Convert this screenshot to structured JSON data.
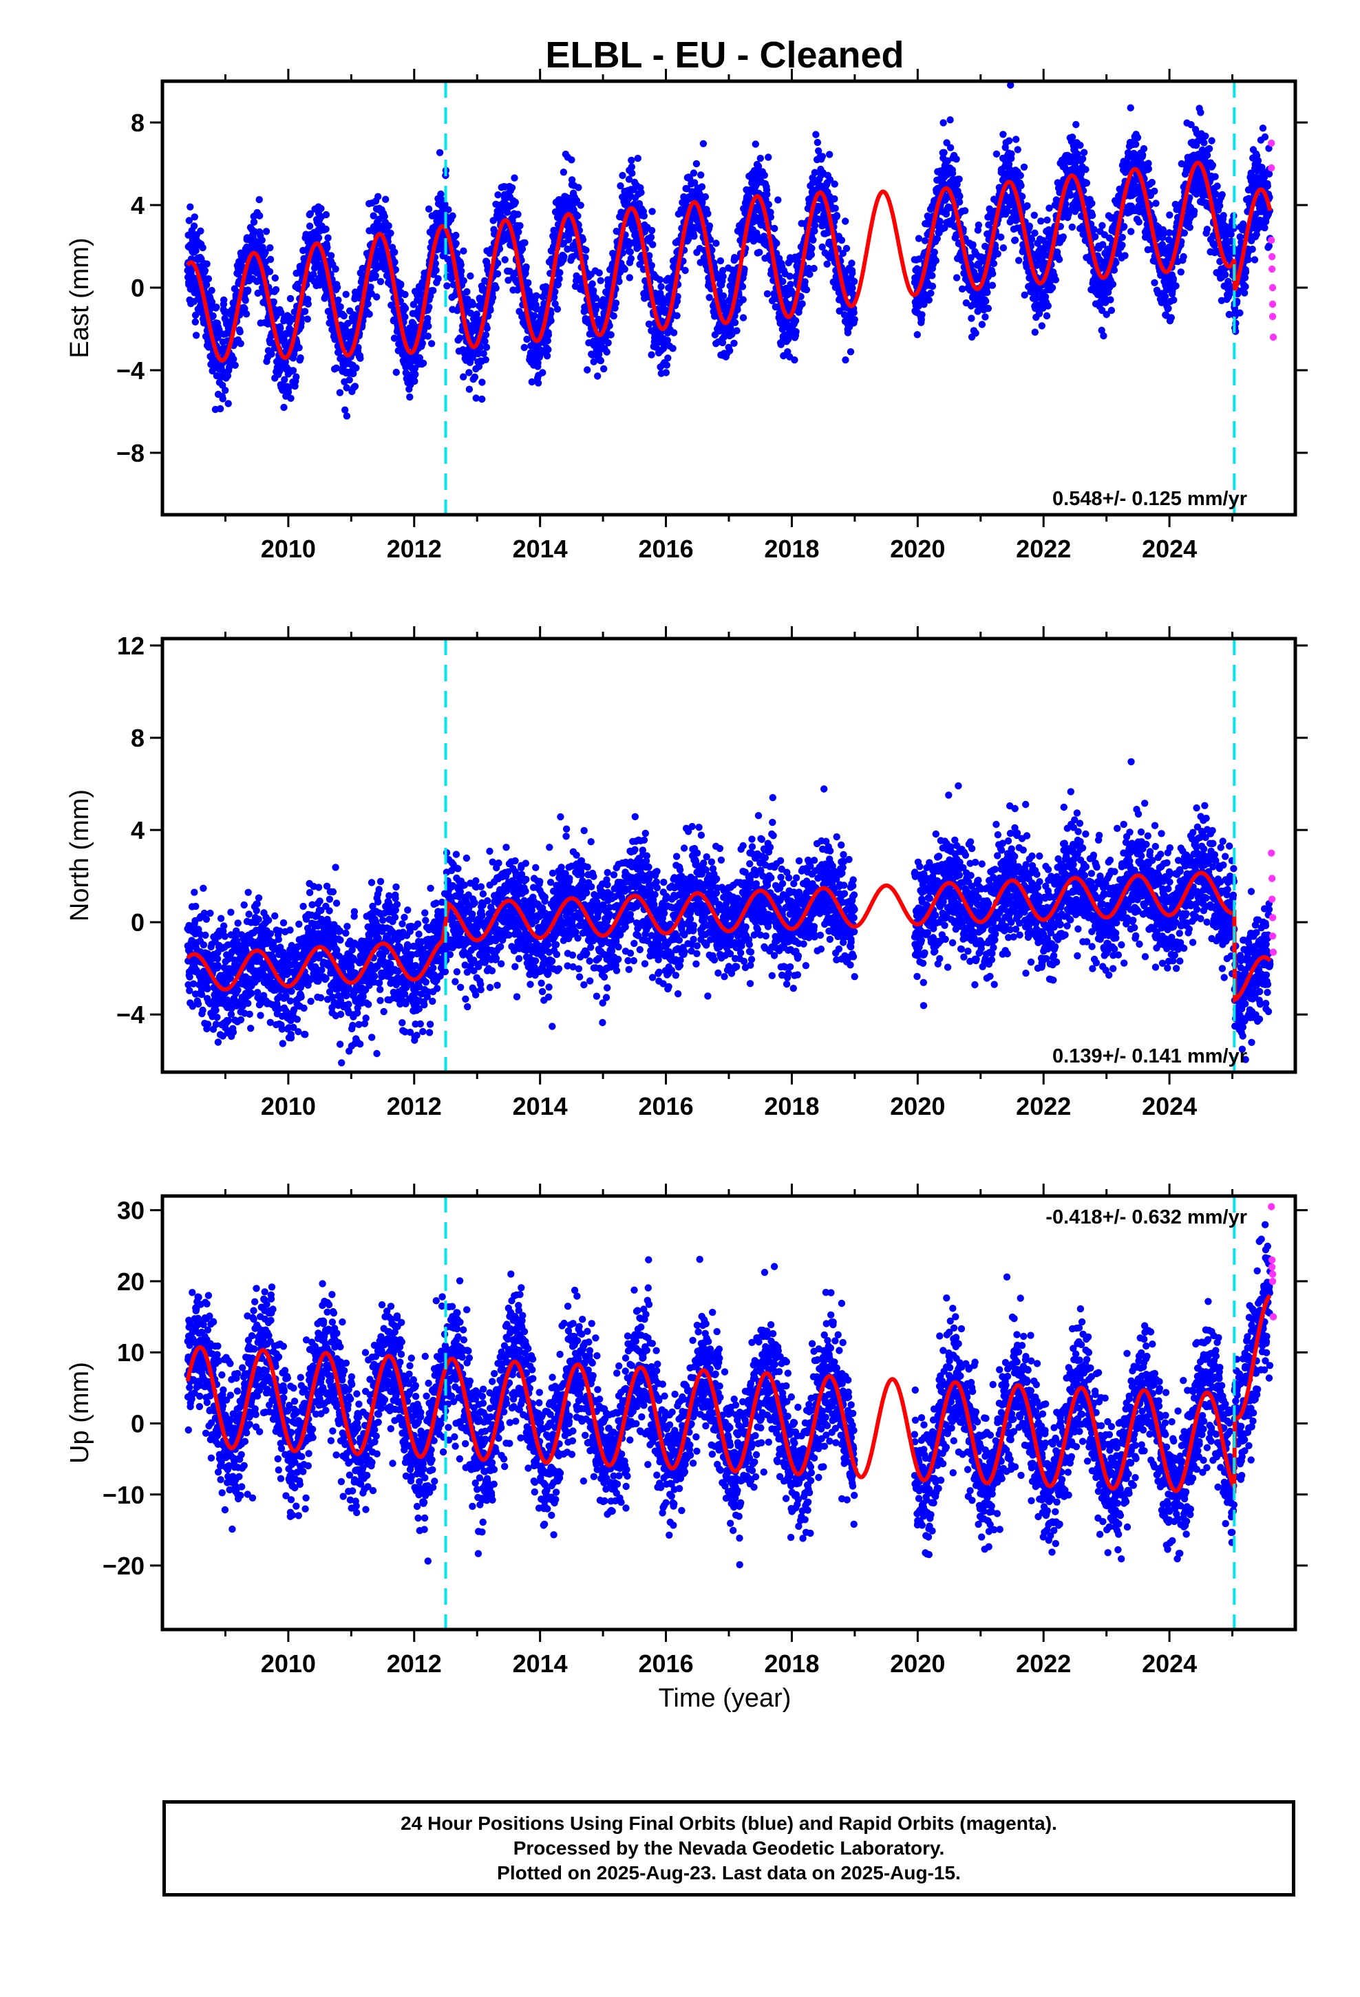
{
  "title": "ELBL  - EU - Cleaned",
  "x_axis_label": "Time (year)",
  "footer": {
    "line1": "24 Hour Positions Using Final Orbits (blue) and Rapid Orbits (magenta).",
    "line2": "Processed by the Nevada Geodetic Laboratory.",
    "line3": "Plotted on 2025-Aug-23. Last data on 2025-Aug-15."
  },
  "colors": {
    "final_orbits": "#0000ff",
    "rapid_orbits": "#ff33ff",
    "model_fit": "#ff0000",
    "equipment_change": "#00e5ee"
  },
  "chart_data": [
    {
      "type": "scatter",
      "name": "east",
      "ylabel": "East (mm)",
      "xlim": [
        2008.0,
        2026.0
      ],
      "ylim": [
        -11,
        10
      ],
      "xticks": [
        2010,
        2012,
        2014,
        2016,
        2018,
        2020,
        2022,
        2024
      ],
      "yticks": [
        -8,
        -4,
        0,
        4,
        8
      ],
      "rate_label": "0.548+/- 0.125 mm/yr",
      "rate_position": "bottom-right",
      "vlines": [
        2012.5,
        2025.03
      ],
      "model": {
        "trend": [
          [
            2008.4,
            -1.2
          ],
          [
            2024.9,
            3.6
          ],
          [
            2025.6,
            3.8
          ]
        ],
        "seasonal_amplitude": [
          [
            2008.4,
            2.4
          ],
          [
            2012.0,
            3.0
          ],
          [
            2018.0,
            3.0
          ],
          [
            2020.0,
            2.5
          ],
          [
            2025.6,
            2.6
          ]
        ],
        "peak_phase_year_fraction": 0.45,
        "offsets": [
          [
            2025.03,
            -1.6
          ]
        ]
      },
      "data_segments": [
        {
          "start": 2008.4,
          "end": 2019.0,
          "noise": 1.1
        },
        {
          "start": 2019.95,
          "end": 2025.6,
          "noise": 1.1
        }
      ],
      "rapid_points": {
        "x": [
          2025.62,
          2025.62,
          2025.62,
          2025.63,
          2025.63,
          2025.64,
          2025.64,
          2025.64,
          2025.65
        ],
        "y": [
          7.0,
          5.8,
          2.3,
          1.5,
          0.9,
          0.0,
          -0.8,
          -1.4,
          -2.4
        ]
      }
    },
    {
      "type": "scatter",
      "name": "north",
      "ylabel": "North (mm)",
      "xlim": [
        2008.0,
        2026.0
      ],
      "ylim": [
        -6.5,
        12.3
      ],
      "xticks": [
        2010,
        2012,
        2014,
        2016,
        2018,
        2020,
        2022,
        2024
      ],
      "yticks": [
        -4,
        0,
        4,
        8,
        12
      ],
      "rate_label": "0.139+/- 0.141 mm/yr",
      "rate_position": "bottom-right",
      "vlines": [
        2012.5,
        2025.03
      ],
      "model": {
        "trend": [
          [
            2008.4,
            -2.2
          ],
          [
            2012.45,
            -1.6
          ],
          [
            2012.55,
            0.0
          ],
          [
            2025.0,
            1.3
          ],
          [
            2025.6,
            1.4
          ]
        ],
        "seasonal_amplitude": [
          [
            2008.4,
            0.8
          ],
          [
            2025.6,
            0.9
          ]
        ],
        "peak_phase_year_fraction": 0.5,
        "offsets": [
          [
            2025.03,
            -3.8
          ]
        ]
      },
      "data_segments": [
        {
          "start": 2008.4,
          "end": 2019.0,
          "noise": 1.2
        },
        {
          "start": 2019.95,
          "end": 2025.6,
          "noise": 1.2
        }
      ],
      "rapid_points": {
        "x": [
          2025.62,
          2025.63,
          2025.63,
          2025.64,
          2025.64,
          2025.65
        ],
        "y": [
          3.0,
          1.9,
          1.0,
          0.2,
          -0.6,
          -1.3
        ]
      }
    },
    {
      "type": "scatter",
      "name": "up",
      "ylabel": "Up (mm)",
      "xlim": [
        2008.0,
        2026.0
      ],
      "ylim": [
        -29,
        32
      ],
      "xticks": [
        2010,
        2012,
        2014,
        2016,
        2018,
        2020,
        2022,
        2024
      ],
      "yticks": [
        -20,
        -10,
        0,
        10,
        20,
        30
      ],
      "xtick_labels": [
        "2010",
        "2012",
        "2014",
        "2016",
        "2018",
        "2020",
        "2022",
        "2024"
      ],
      "rate_label": "-0.418+/- 0.632 mm/yr",
      "rate_position": "top-right",
      "vlines": [
        2012.5,
        2025.03
      ],
      "model": {
        "trend": [
          [
            2008.4,
            3.8
          ],
          [
            2018.5,
            -0.3
          ],
          [
            2022.0,
            -1.8
          ],
          [
            2025.0,
            -2.8
          ],
          [
            2025.6,
            1.0
          ]
        ],
        "seasonal_amplitude": [
          [
            2008.4,
            7.0
          ],
          [
            2025.6,
            7.0
          ]
        ],
        "peak_phase_year_fraction": 0.6,
        "offsets": [
          [
            2025.03,
            10.0
          ]
        ]
      },
      "data_segments": [
        {
          "start": 2008.4,
          "end": 2019.0,
          "noise": 4.5
        },
        {
          "start": 2019.95,
          "end": 2025.6,
          "noise": 4.5
        }
      ],
      "rapid_points": {
        "x": [
          2025.62,
          2025.63,
          2025.63,
          2025.64,
          2025.64,
          2025.65
        ],
        "y": [
          30.5,
          23.0,
          22.0,
          21.0,
          20.0,
          15.0
        ]
      }
    }
  ]
}
